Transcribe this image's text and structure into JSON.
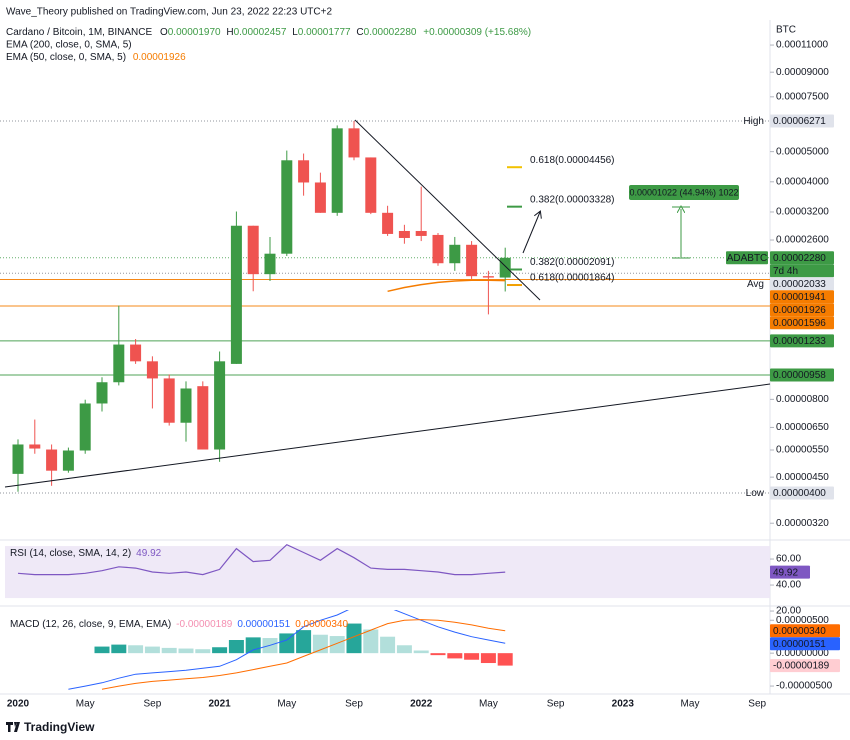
{
  "header": {
    "publisher": "Wave_Theory published on TradingView.com, Jun 23, 2022 22:23 UTC+2",
    "symbol": "Cardano / Bitcoin, 1M, BINANCE",
    "ohlc": [
      {
        "key": "O",
        "value": "0.00001970"
      },
      {
        "key": "H",
        "value": "0.00002457"
      },
      {
        "key": "L",
        "value": "0.00001777"
      },
      {
        "key": "C",
        "value": "0.00002280"
      }
    ],
    "change": "+0.00000309 (+15.68%)",
    "indicators": [
      {
        "label": "EMA (200, close, 0, SMA, 5)"
      },
      {
        "label": "EMA (50, close, 0, SMA, 5)",
        "value": "0.00001926"
      }
    ],
    "currency": "BTC"
  },
  "chart_data": [
    {
      "type": "candlestick",
      "log_scale": true,
      "up_color": "#3d9a45",
      "down_color": "#ef5350",
      "ylim": [
        2.89e-06,
        0.0001324
      ],
      "yticks": [
        {
          "value": 0.00011,
          "label": "0.00011000"
        },
        {
          "value": 9e-05,
          "label": "0.00009000"
        },
        {
          "value": 7.5e-05,
          "label": "0.00007500"
        },
        {
          "value": 5e-05,
          "label": "0.00005000"
        },
        {
          "value": 4e-05,
          "label": "0.00004000"
        },
        {
          "value": 3.2e-05,
          "label": "0.00003200"
        },
        {
          "value": 2.6e-05,
          "label": "0.00002600"
        },
        {
          "value": 8e-06,
          "label": "0.00000800"
        },
        {
          "value": 6.5e-06,
          "label": "0.00000650"
        },
        {
          "value": 5.5e-06,
          "label": "0.00000550"
        },
        {
          "value": 4.5e-06,
          "label": "0.00000450"
        },
        {
          "value": 3.2e-06,
          "label": "0.00000320"
        }
      ],
      "categories": [
        "2020",
        null,
        null,
        null,
        "May",
        null,
        null,
        null,
        "Sep",
        null,
        null,
        null,
        "2021",
        null,
        null,
        null,
        "May",
        null,
        null,
        null,
        "Sep",
        null,
        null,
        null,
        "2022",
        null,
        null,
        null,
        "May",
        null,
        null,
        null,
        "Sep",
        null,
        null,
        null,
        "2023",
        null,
        null,
        null,
        "May",
        null,
        null,
        null,
        "Sep"
      ],
      "open": [
        4.61e-06,
        5.73e-06,
        5.52e-06,
        4.72e-06,
        5.48e-06,
        7.76e-06,
        9.08e-06,
        1.2e-05,
        1.06e-05,
        9.34e-06,
        6.73e-06,
        8.82e-06,
        5.52e-06,
        1.04e-05,
        2.89e-05,
        2.02e-05,
        2.35e-05,
        4.69e-05,
        3.98e-05,
        3.18e-05,
        5.94e-05,
        4.79e-05,
        3.18e-05,
        2.78e-05,
        2.78e-05,
        2.7e-05,
        2.19e-05,
        2.51e-05,
        1.99e-05,
        1.97e-05,
        null,
        null,
        null,
        null,
        null,
        null,
        null,
        null,
        null,
        null,
        null,
        null,
        null,
        null,
        null
      ],
      "high": [
        5.95e-06,
        6.89e-06,
        5.73e-06,
        5.6e-06,
        7.98e-06,
        9.42e-06,
        1.6e-05,
        1.25e-05,
        1.1e-05,
        9.62e-06,
        9.14e-06,
        9.14e-06,
        1.14e-05,
        3.21e-05,
        2.89e-05,
        2.66e-05,
        5.04e-05,
        4.93e-05,
        4.28e-05,
        6.07e-05,
        6.271e-05,
        4.79e-05,
        3.35e-05,
        2.91e-05,
        3.86e-05,
        2.74e-05,
        2.66e-05,
        2.58e-05,
        2.07e-05,
        2.457e-05,
        null,
        null,
        null,
        null,
        null,
        null,
        null,
        null,
        null,
        null,
        null,
        null,
        null,
        null,
        null
      ],
      "low": [
        4.04e-06,
        5.35e-06,
        4.22e-06,
        4.65e-06,
        5.35e-06,
        7.31e-06,
        8.87e-06,
        1.04e-05,
        7.48e-06,
        6.59e-06,
        5.85e-06,
        5.52e-06,
        5.04e-06,
        1.04e-05,
        1.78e-05,
        1.92e-05,
        2.31e-05,
        3.61e-05,
        3.18e-05,
        3.11e-05,
        4.69e-05,
        3.15e-05,
        2.68e-05,
        2.53e-05,
        2.58e-05,
        2.15e-05,
        2.07e-05,
        1.95e-05,
        1.5e-05,
        1.777e-05,
        null,
        null,
        null,
        null,
        null,
        null,
        null,
        null,
        null,
        null,
        null,
        null,
        null,
        null,
        null
      ],
      "close": [
        5.73e-06,
        5.56e-06,
        4.72e-06,
        5.48e-06,
        7.76e-06,
        9.08e-06,
        1.2e-05,
        1.06e-05,
        9.34e-06,
        6.73e-06,
        8.67e-06,
        5.52e-06,
        1.06e-05,
        2.89e-05,
        2.02e-05,
        2.35e-05,
        4.69e-05,
        3.98e-05,
        3.18e-05,
        5.94e-05,
        4.79e-05,
        3.18e-05,
        2.72e-05,
        2.64e-05,
        2.68e-05,
        2.19e-05,
        2.51e-05,
        1.99e-05,
        1.97e-05,
        2.28e-05,
        null,
        null,
        null,
        null,
        null,
        null,
        null,
        null,
        null,
        null,
        null,
        null,
        null,
        null,
        null
      ],
      "series": [
        {
          "color": "#f57c00",
          "values": [
            null,
            null,
            null,
            null,
            null,
            null,
            null,
            null,
            null,
            null,
            null,
            null,
            null,
            null,
            null,
            null,
            null,
            null,
            null,
            null,
            null,
            null,
            1.78e-05,
            1.83e-05,
            1.87e-05,
            1.9e-05,
            1.92e-05,
            1.93e-05,
            1.93e-05,
            1.926e-05,
            null,
            null,
            null,
            null,
            null,
            null,
            null,
            null,
            null,
            null,
            null,
            null,
            null,
            null,
            null
          ]
        }
      ],
      "price_tags": [
        {
          "value": 6.271e-05,
          "label": "0.00006271",
          "side_label": "High",
          "color": "#e0e3eb",
          "text_color": "#131722",
          "line": "dotted"
        },
        {
          "value": 2.28e-05,
          "label": "0.00002280",
          "name": "ADABTC",
          "sub": "7d 4h",
          "color": "#3d9a45",
          "text_color": "#ffffff",
          "line": "dotted"
        },
        {
          "value": 2.033e-05,
          "label": "0.00002033",
          "side_label": "Avg",
          "color": "#e0e3eb",
          "text_color": "#131722",
          "line": "dotted"
        },
        {
          "value": 1.941e-05,
          "label": "0.00001941",
          "color": "#f57c00",
          "text_color": "#131722",
          "line": "solid"
        },
        {
          "value": 1.926e-05,
          "label": "0.00001926",
          "color": "#f57c00",
          "text_color": "#ffffff"
        },
        {
          "value": 1.596e-05,
          "label": "0.00001596",
          "color": "#f57c00",
          "text_color": "#131722",
          "line": "solid"
        },
        {
          "value": 1.233e-05,
          "label": "0.00001233",
          "color": "#3d9a45",
          "text_color": "#ffffff",
          "line": "solid"
        },
        {
          "value": 9.58e-06,
          "label": "0.00000958",
          "color": "#3d9a45",
          "text_color": "#ffffff",
          "line": "solid"
        },
        {
          "value": 4e-06,
          "label": "0.00000400",
          "side_label": "Low",
          "color": "#e0e3eb",
          "text_color": "#131722",
          "line": "dotted"
        }
      ],
      "fib_levels": [
        {
          "value": 4.456e-05,
          "label": "0.618(0.00004456)",
          "color": "#f2c200"
        },
        {
          "value": 3.328e-05,
          "label": "0.382(0.00003328)",
          "color": "#3d9a45"
        },
        {
          "value": 2.091e-05,
          "label": "0.382(0.00002091)",
          "color": "#3d9a45"
        },
        {
          "value": 1.864e-05,
          "label": "0.618(0.00001864)",
          "color": "#f2a000"
        }
      ],
      "measure": {
        "label": "0.00001022 (44.94%) 1022",
        "color": "#3d9a45"
      }
    },
    {
      "type": "line",
      "title": "RSI (14, close, SMA, 14, 2)",
      "value_label": "49.92",
      "color": "#7e57c2",
      "band": [
        30,
        70
      ],
      "ylim": [
        28.5,
        70.8
      ],
      "yticks": [
        {
          "value": 60,
          "label": "60.00"
        },
        {
          "value": 40,
          "label": "40.00"
        },
        {
          "value": 20,
          "label": "20.00"
        }
      ],
      "values": [
        49,
        48,
        48,
        48,
        49,
        51,
        54,
        53,
        50,
        49,
        50,
        48,
        52,
        68,
        58,
        59,
        71,
        65,
        59,
        68,
        61,
        53,
        52,
        52,
        51,
        50,
        48,
        48,
        49,
        49.92
      ],
      "tag": {
        "value": 49.92,
        "label": "49.92"
      }
    },
    {
      "type": "macd",
      "title": "MACD (12, 26, close, 9, EMA, EMA)",
      "legend_values": [
        {
          "label": "-0.00000189",
          "color": "#f48fb1"
        },
        {
          "label": "0.00000151",
          "color": "#2962ff"
        },
        {
          "label": "0.00000340",
          "color": "#ff6d00"
        }
      ],
      "ylim": [
        -5.6e-06,
        5.8e-06
      ],
      "yticks": [
        {
          "value": 5e-06,
          "label": "0.00000500"
        },
        {
          "value": 0,
          "label": "0.00000000"
        },
        {
          "value": -5e-06,
          "label": "-0.00000500"
        }
      ],
      "histogram": [
        null,
        null,
        null,
        null,
        null,
        1e-06,
        1.3e-06,
        1.2e-06,
        1e-06,
        8e-07,
        7e-07,
        6e-07,
        9e-07,
        2e-06,
        2.4e-06,
        2.3e-06,
        3e-06,
        3.5e-06,
        2.8e-06,
        2.6e-06,
        4.5e-06,
        3.6e-06,
        2.5e-06,
        1.2e-06,
        4e-07,
        -3e-07,
        -8e-07,
        -1e-06,
        -1.5e-06,
        -1.89e-06
      ],
      "series": [
        {
          "color": "#2962ff",
          "values": [
            null,
            null,
            null,
            -5.5e-06,
            -5e-06,
            -4.5e-06,
            -3.8e-06,
            -3.2e-06,
            -3e-06,
            -2.8e-06,
            -2.6e-06,
            -2.3e-06,
            -2e-06,
            -1e-06,
            5e-07,
            1.2e-06,
            2e-06,
            4e-06,
            5e-06,
            5.8e-06,
            7e-06,
            7.5e-06,
            7e-06,
            6e-06,
            5e-06,
            4e-06,
            3.2e-06,
            2.5e-06,
            2e-06,
            1.51e-06
          ]
        },
        {
          "color": "#ff6d00",
          "values": [
            null,
            null,
            null,
            null,
            null,
            -5.5e-06,
            -5e-06,
            -4.6e-06,
            -4.3e-06,
            -4.1e-06,
            -3.9e-06,
            -3.7e-06,
            -3.4e-06,
            -3e-06,
            -2.5e-06,
            -2e-06,
            -1.5e-06,
            -5e-07,
            5e-07,
            1.5e-06,
            2.5e-06,
            3.5e-06,
            4.5e-06,
            5e-06,
            5.1e-06,
            5e-06,
            4.7e-06,
            4.3e-06,
            3.8e-06,
            3.4e-06
          ]
        }
      ],
      "tags": [
        {
          "value": 3.4e-06,
          "label": "0.00000340",
          "color": "#ff6d00",
          "text_color": "#131722"
        },
        {
          "value": 1.51e-06,
          "label": "0.00000151",
          "color": "#2962ff",
          "text_color": "#ffffff"
        },
        {
          "value": -1.89e-06,
          "label": "-0.00000189",
          "color": "#ffcdd2",
          "text_color": "#131722"
        }
      ]
    }
  ],
  "footer": {
    "brand": "TradingView"
  }
}
